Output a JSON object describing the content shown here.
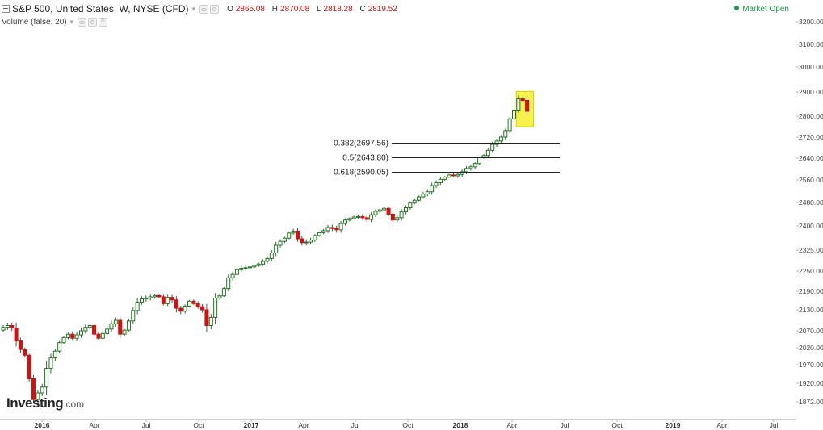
{
  "header": {
    "title": "S&P 500, United States, W, NYSE (CFD)",
    "ohlc": [
      {
        "key": "O",
        "value": "2865.08"
      },
      {
        "key": "H",
        "value": "2870.08"
      },
      {
        "key": "L",
        "value": "2818.28"
      },
      {
        "key": "C",
        "value": "2819.52"
      }
    ],
    "indicator_label": "Volume (false, 20)",
    "market_status": "Market Open"
  },
  "logo": {
    "main": "Investing",
    "suffix": ".com"
  },
  "colors": {
    "up": "#1a7a1a",
    "down": "#d11010",
    "highlight": "#f4f02a",
    "market_open": "#1a9a4a",
    "fib_line": "#222222"
  },
  "chart_data": {
    "type": "candlestick",
    "interval": "weekly",
    "y_axis_ticks": [
      "3200.00",
      "3100.00",
      "3000.00",
      "2900.00",
      "2800.00",
      "2720.00",
      "2640.00",
      "2560.00",
      "2480.00",
      "2400.00",
      "2325.00",
      "2250.00",
      "2190.00",
      "2130.00",
      "2070.00",
      "2020.00",
      "1970.00",
      "1920.00",
      "1872.00"
    ],
    "x_axis_ticks": [
      {
        "label": "2016",
        "bold": true
      },
      {
        "label": "Apr",
        "bold": false
      },
      {
        "label": "Jul",
        "bold": false
      },
      {
        "label": "Oct",
        "bold": false
      },
      {
        "label": "2017",
        "bold": true
      },
      {
        "label": "Apr",
        "bold": false
      },
      {
        "label": "Jul",
        "bold": false
      },
      {
        "label": "Oct",
        "bold": false
      },
      {
        "label": "2018",
        "bold": true
      },
      {
        "label": "Apr",
        "bold": false
      },
      {
        "label": "Jul",
        "bold": false
      },
      {
        "label": "Oct",
        "bold": false
      },
      {
        "label": "2019",
        "bold": true
      },
      {
        "label": "Apr",
        "bold": false
      },
      {
        "label": "Jul",
        "bold": false
      }
    ],
    "fibonacci_levels": [
      {
        "label": "0.382(2697.56)",
        "value": 2697.56
      },
      {
        "label": "0.5(2643.80)",
        "value": 2643.8
      },
      {
        "label": "0.618(2590.05)",
        "value": 2590.05
      }
    ],
    "closes": [
      2080,
      2085,
      2078,
      2040,
      2015,
      1998,
      1932,
      1878,
      1895,
      1910,
      1960,
      1990,
      2010,
      2035,
      2050,
      2060,
      2048,
      2058,
      2070,
      2080,
      2085,
      2060,
      2048,
      2062,
      2075,
      2090,
      2100,
      2060,
      2072,
      2098,
      2128,
      2155,
      2165,
      2168,
      2172,
      2176,
      2172,
      2150,
      2170,
      2162,
      2135,
      2126,
      2142,
      2158,
      2150,
      2140,
      2130,
      2085,
      2108,
      2168,
      2175,
      2198,
      2230,
      2240,
      2255,
      2260,
      2262,
      2265,
      2270,
      2275,
      2285,
      2295,
      2315,
      2340,
      2352,
      2362,
      2378,
      2384,
      2360,
      2348,
      2350,
      2356,
      2370,
      2379,
      2385,
      2395,
      2392,
      2388,
      2408,
      2420,
      2425,
      2430,
      2432,
      2428,
      2422,
      2438,
      2450,
      2455,
      2460,
      2440,
      2420,
      2428,
      2448,
      2462,
      2478,
      2488,
      2500,
      2510,
      2518,
      2540,
      2550,
      2562,
      2570,
      2578,
      2575,
      2580,
      2590,
      2602,
      2608,
      2620,
      2642,
      2650,
      2670,
      2692,
      2705,
      2720,
      2745,
      2790,
      2825,
      2872,
      2865,
      2820
    ],
    "highlight_last_n": 2,
    "last_close": 2819.52
  }
}
